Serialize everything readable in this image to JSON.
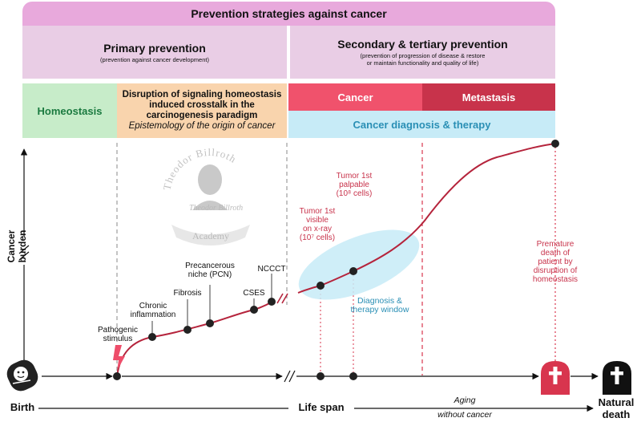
{
  "banner": "Prevention strategies against cancer",
  "primary": {
    "title": "Primary prevention",
    "subtitle": "(prevention against cancer development)"
  },
  "secondary": {
    "title": "Secondary & tertiary prevention",
    "subtitle_1": "(prevention of progression of disease & restore",
    "subtitle_2": "or maintain functionality and quality of life)"
  },
  "boxes": {
    "homeostasis": "Homeostasis",
    "disruption_1": "Disruption of signaling homeostasis",
    "disruption_2": "induced crosstalk in the",
    "disruption_3": "carcinogenesis paradigm",
    "disruption_4": "Epistemology of the origin of cancer",
    "cancer": "Cancer",
    "metastasis": "Metastasis",
    "diagnosis": "Cancer diagnosis & therapy"
  },
  "axis": {
    "y_label": "Cancer burden",
    "birth": "Birth",
    "life_span": "Life span",
    "aging_1": "Aging",
    "aging_2": "without cancer",
    "natural_1": "Natural",
    "natural_2": "death"
  },
  "stages": {
    "pathogenic_1": "Pathogenic",
    "pathogenic_2": "stimulus",
    "chronic_1": "Chronic",
    "chronic_2": "inflammation",
    "fibrosis": "Fibrosis",
    "pcn_1": "Precancerous",
    "pcn_2": "niche (PCN)",
    "cses": "CSES",
    "nccct": "NCCCT"
  },
  "tumors": {
    "xray_1": "Tumor 1st",
    "xray_2": "visible",
    "xray_3": "on x-ray",
    "xray_4": "(10⁷ cells)",
    "palp_1": "Tumor 1st",
    "palp_2": "palpable",
    "palp_3": "(10⁸ cells)"
  },
  "window": {
    "line_1": "Diagnosis &",
    "line_2": "therapy window"
  },
  "premature": {
    "line_1": "Premature",
    "line_2": "death of",
    "line_3": "patient by",
    "line_4": "disruption of",
    "line_5": "homeostasis"
  },
  "logo": {
    "top": "Theodor Billroth",
    "bottom": "Academy",
    "signature": "Theodor Billroth"
  },
  "colors": {
    "banner": "#e8a9dc",
    "phase": "#e9cde5",
    "homeostasis": "#c7ecc9",
    "disruption": "#f9d4ad",
    "cancer": "#f0526c",
    "metastasis": "#c8334b",
    "diagnosis": "#c7ebf7",
    "curve": "#b5243c"
  },
  "icons": [
    "baby-icon",
    "lightning-icon",
    "tombstone-cross-icon"
  ]
}
